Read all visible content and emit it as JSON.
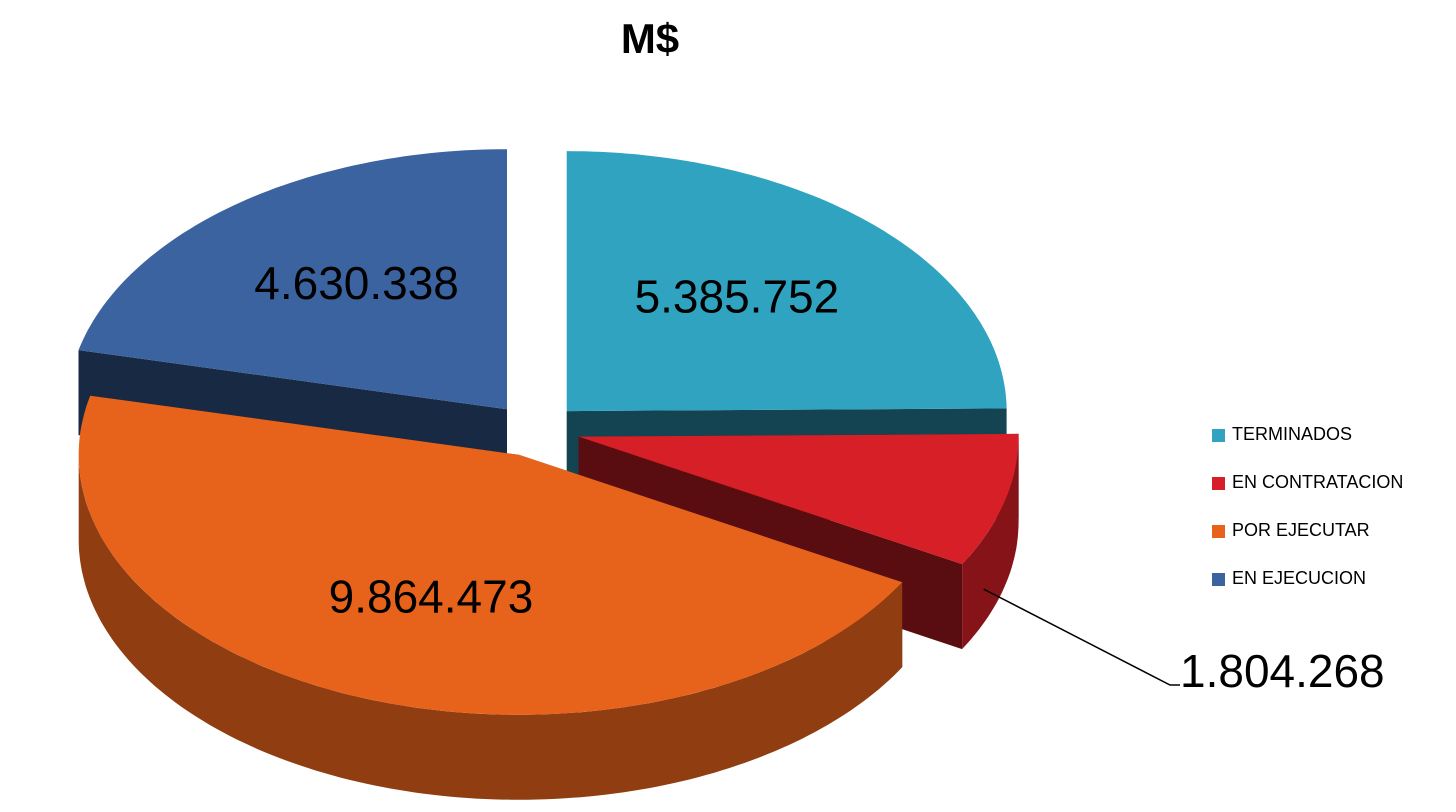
{
  "chart_data": {
    "type": "pie3d",
    "title": "M$",
    "categories": [
      "TERMINADOS",
      "EN CONTRATACION",
      "POR EJECUTAR",
      "EN EJECUCION"
    ],
    "values": [
      5385752,
      1804268,
      9864473,
      4630338
    ],
    "value_labels": [
      "5.385.752",
      "1.804.268",
      "9.864.473",
      "4.630.338"
    ],
    "colors": [
      "#2fa3c0",
      "#d71f27",
      "#e7631c",
      "#3a63a0"
    ],
    "legend": "right"
  }
}
